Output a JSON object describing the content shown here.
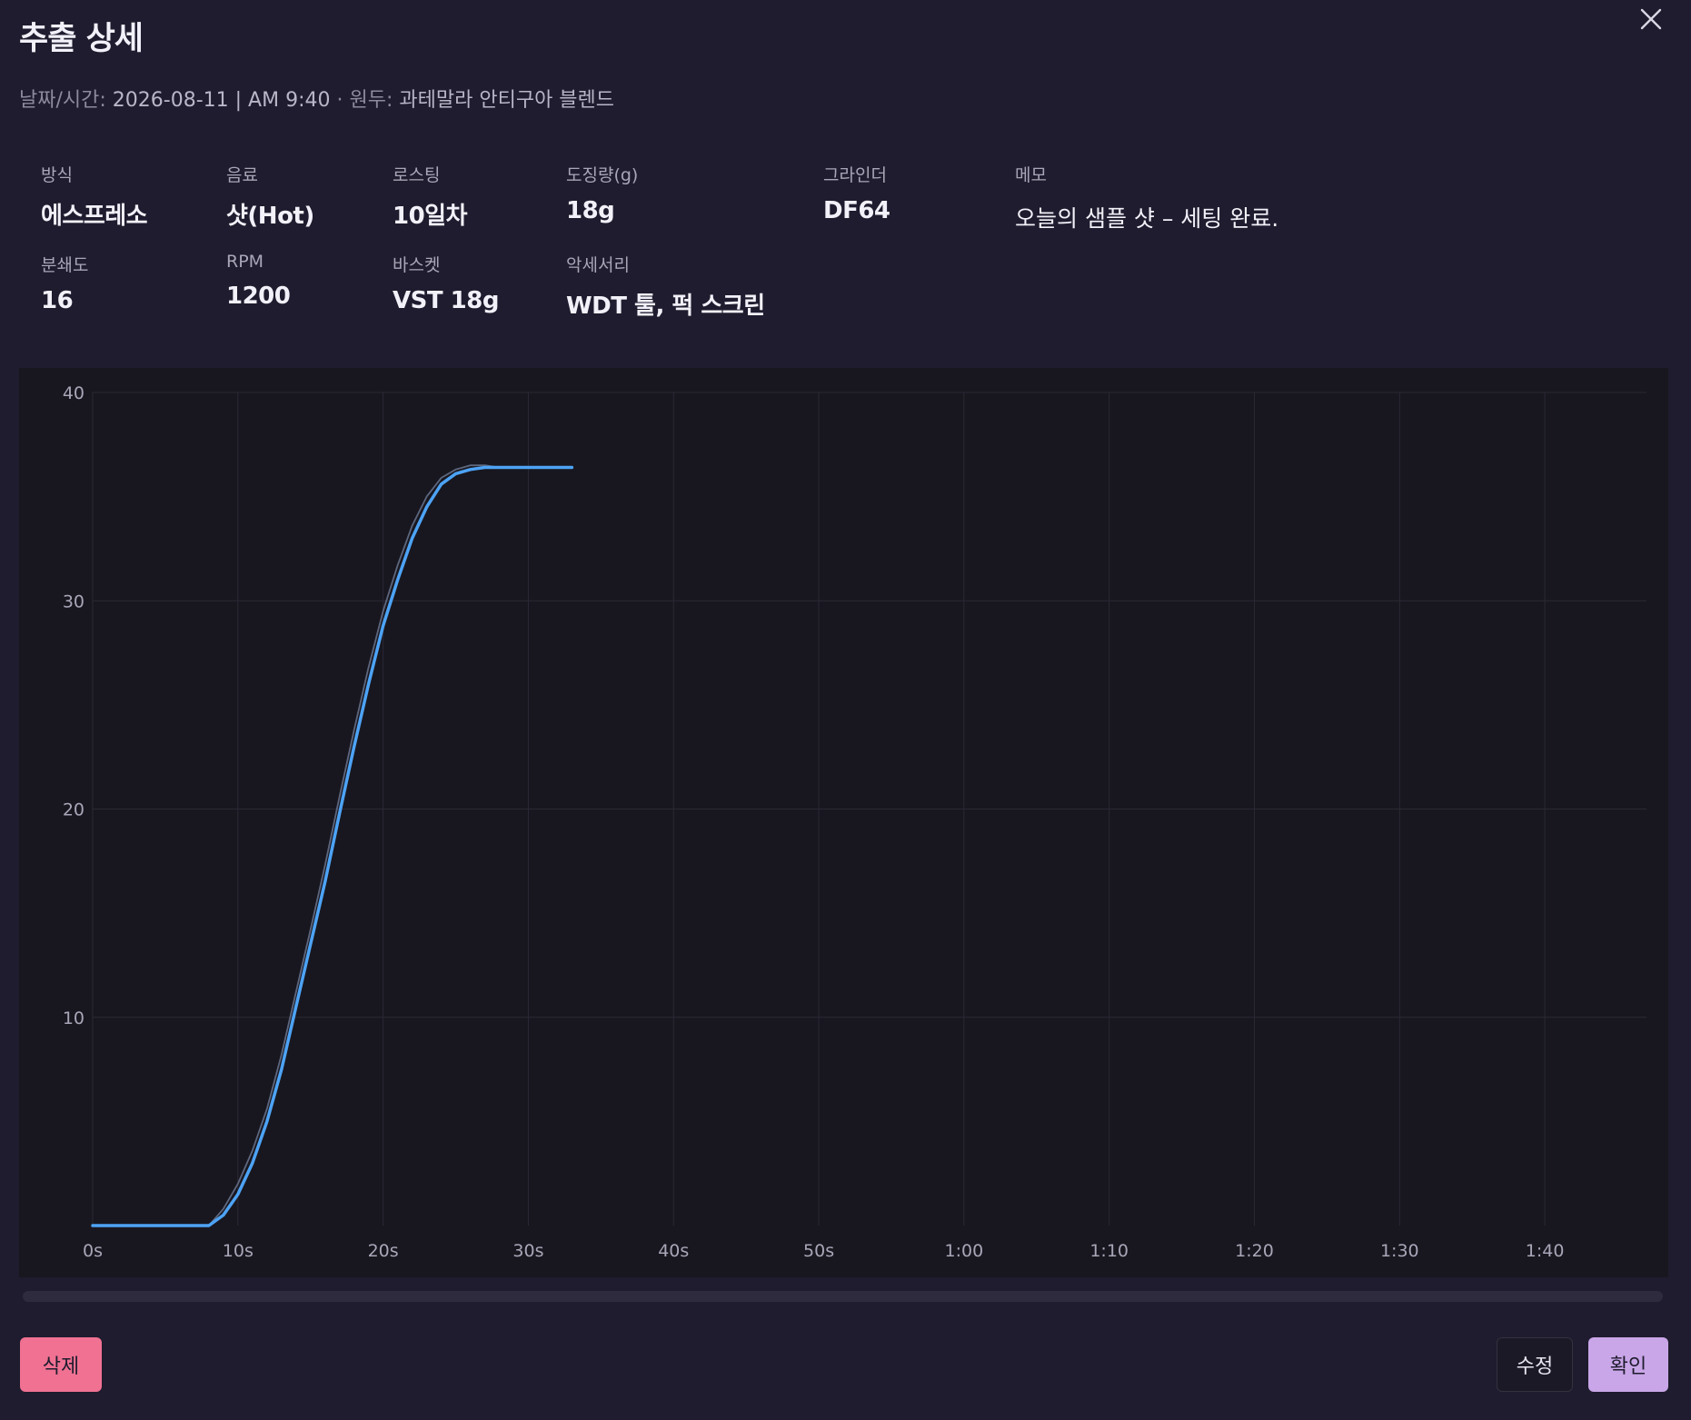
{
  "dialog": {
    "title": "추출 상세",
    "subtitle": {
      "date_label": "날짜/시간:",
      "date_value": "2026-08-11 | AM 9:40",
      "separator": "·",
      "bean_label": "원두:",
      "bean_value": "과테말라 안티구아 블렌드"
    },
    "fields": [
      {
        "label": "방식",
        "value": "에스프레소"
      },
      {
        "label": "음료",
        "value": "샷(Hot)"
      },
      {
        "label": "로스팅",
        "value": "10일차"
      },
      {
        "label": "도징량(g)",
        "value": "18g"
      },
      {
        "label": "그라인더",
        "value": "DF64"
      },
      {
        "label": "메모",
        "value": "오늘의 샘플 샷 – 세팅 완료."
      },
      {
        "label": "분쇄도",
        "value": "16"
      },
      {
        "label": "RPM",
        "value": "1200"
      },
      {
        "label": "바스켓",
        "value": "VST 18g"
      },
      {
        "label": "악세서리",
        "value": "WDT 툴, 퍽 스크린"
      }
    ],
    "buttons": {
      "delete": "삭제",
      "edit": "수정",
      "confirm": "확인"
    },
    "colors": {
      "background": "#1e1c2e",
      "chart_bg": "#18171f",
      "line": "#4da3f5",
      "delete": "#f07192",
      "confirm": "#c9a6e8"
    }
  },
  "chart_data": {
    "type": "line",
    "title": "",
    "xlabel": "",
    "ylabel": "",
    "x_ticks": [
      "0s",
      "10s",
      "20s",
      "30s",
      "40s",
      "50s",
      "1:00",
      "1:10",
      "1:20",
      "1:30",
      "1:40"
    ],
    "y_ticks": [
      "10",
      "20",
      "30",
      "40"
    ],
    "xlim": [
      0,
      107
    ],
    "ylim": [
      0,
      40
    ],
    "grid": true,
    "series": [
      {
        "color": "#4da3f5",
        "x": [
          0,
          2,
          4,
          6,
          8,
          9,
          10,
          11,
          12,
          13,
          14,
          15,
          16,
          17,
          18,
          19,
          20,
          21,
          22,
          23,
          24,
          25,
          26,
          27,
          28,
          28.5,
          29,
          30,
          31,
          32,
          33
        ],
        "y": [
          0,
          0,
          0,
          0,
          0,
          0.5,
          1.5,
          3.0,
          5.0,
          7.5,
          10.5,
          13.5,
          16.5,
          19.8,
          23.0,
          26.0,
          28.8,
          31.0,
          33.0,
          34.5,
          35.6,
          36.1,
          36.3,
          36.4,
          36.4,
          36.4,
          36.4,
          36.4,
          36.4,
          36.4,
          36.4
        ]
      },
      {
        "color": "#6f7a96",
        "x": [
          8,
          9,
          10,
          11,
          12,
          13,
          14,
          15,
          16,
          17,
          18,
          19,
          20,
          21,
          22,
          23,
          24,
          25,
          26,
          27,
          28
        ],
        "y": [
          0,
          0.8,
          2.0,
          3.6,
          5.6,
          8.2,
          11.2,
          14.2,
          17.3,
          20.6,
          23.8,
          26.8,
          29.5,
          31.7,
          33.6,
          35.0,
          35.9,
          36.3,
          36.5,
          36.5,
          36.4
        ]
      }
    ]
  }
}
